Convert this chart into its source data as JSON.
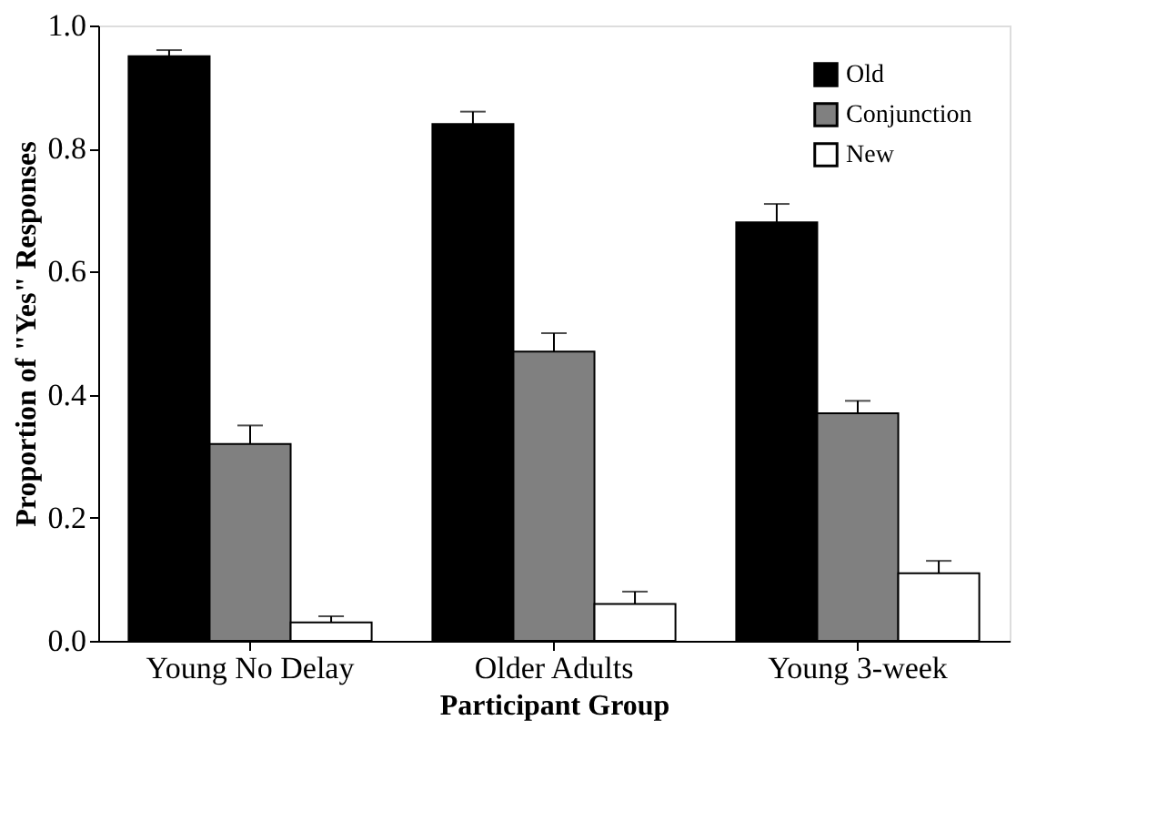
{
  "chart_data": {
    "type": "bar",
    "xlabel": "Participant Group",
    "ylabel": "Proportion of \"Yes\" Responses",
    "categories": [
      "Young No Delay",
      "Older Adults",
      "Young 3-week"
    ],
    "series": [
      {
        "name": "Old",
        "color": "#000000",
        "values": [
          0.95,
          0.84,
          0.68
        ],
        "errors": [
          [
            0.95,
            0.96
          ],
          [
            0.84,
            0.86
          ],
          [
            0.68,
            0.71
          ]
        ]
      },
      {
        "name": "Conjunction",
        "color": "#808080",
        "values": [
          0.32,
          0.47,
          0.37
        ],
        "errors": [
          [
            0.32,
            0.35
          ],
          [
            0.47,
            0.5
          ],
          [
            0.37,
            0.39
          ]
        ]
      },
      {
        "name": "New",
        "color": "#ffffff",
        "values": [
          0.03,
          0.06,
          0.11
        ],
        "errors": [
          [
            0.03,
            0.04
          ],
          [
            0.06,
            0.08
          ],
          [
            0.11,
            0.13
          ]
        ]
      }
    ],
    "ylim": [
      0,
      1
    ],
    "yticks": [
      {
        "value": 0,
        "label": "0.0"
      },
      {
        "value": 0.2,
        "label": "0.2"
      },
      {
        "value": 0.4,
        "label": "0.4"
      },
      {
        "value": 0.6,
        "label": "0.6"
      },
      {
        "value": 0.8,
        "label": "0.8"
      },
      {
        "value": 1,
        "label": "1.0"
      }
    ],
    "legend": "top right",
    "grid": false
  }
}
